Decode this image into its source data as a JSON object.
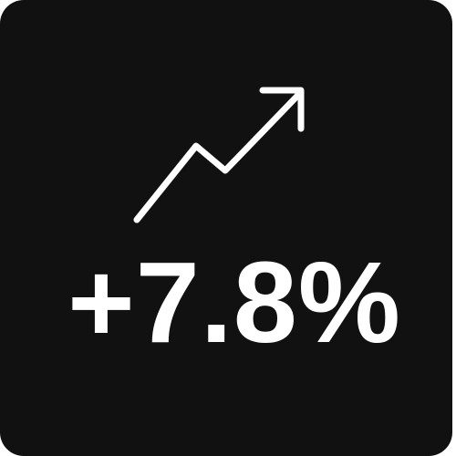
{
  "tile": {
    "background": "#111111",
    "foreground": "#ffffff",
    "icon": "trending-up-arrow-icon",
    "value": "+7.8%"
  }
}
